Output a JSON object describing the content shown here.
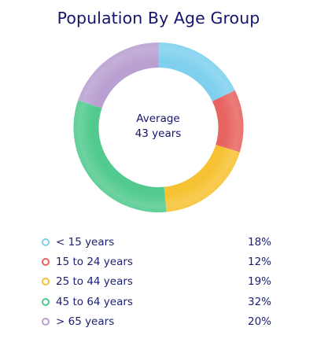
{
  "chart_data": {
    "type": "pie",
    "title": "Population By Age Group",
    "center_label": "Average",
    "center_value": "43 years",
    "categories": [
      "< 15 years",
      "15 to 24 years",
      "25 to 44 years",
      "45 to 64 years",
      "> 65 years"
    ],
    "values": [
      18,
      12,
      19,
      32,
      20
    ],
    "value_labels": [
      "18%",
      "12%",
      "19%",
      "32%",
      "20%"
    ],
    "colors": [
      "#7fd0ee",
      "#e76460",
      "#f6c233",
      "#52ca8f",
      "#b9a0d1"
    ],
    "legend_position": "bottom",
    "donut": true
  }
}
